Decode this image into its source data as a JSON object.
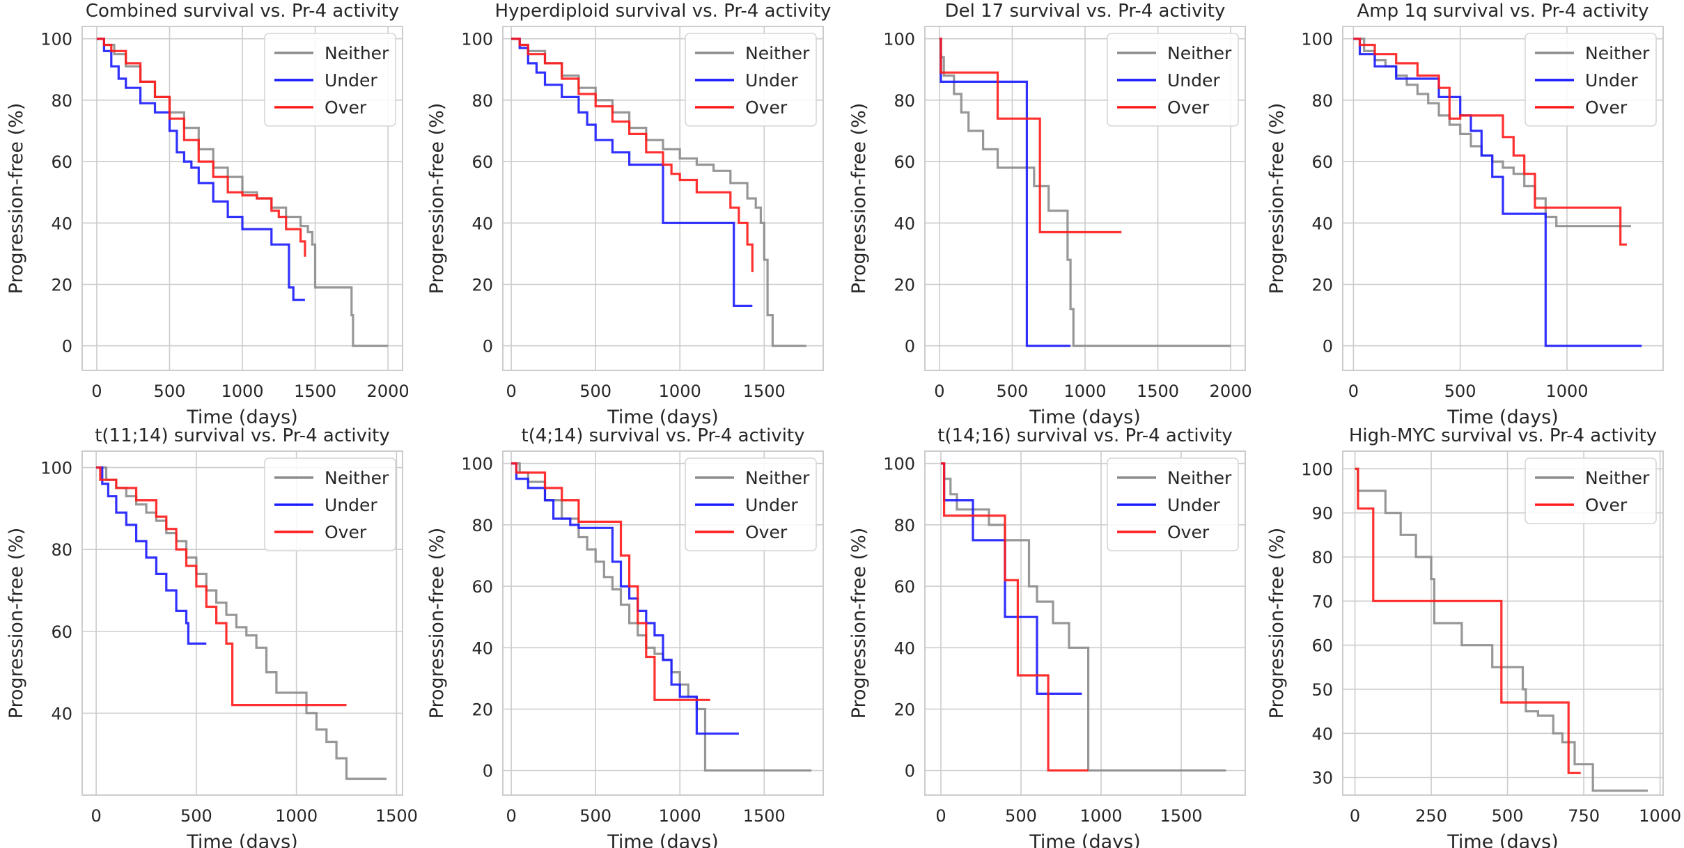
{
  "figure": {
    "ylabel": "Progression-free (%)",
    "xlabel": "Time (days)",
    "colors": {
      "Neither": "#8c8c8c",
      "Under": "#1a1aff",
      "Over": "#ff1a1a"
    }
  },
  "chart_data": [
    {
      "type": "line",
      "title": "Combined survival vs. Pr-4 activity",
      "xlabel": "Time (days)",
      "ylabel": "Progression-free (%)",
      "xlim": [
        -100,
        2100
      ],
      "ylim": [
        -8,
        104
      ],
      "xticks": [
        0,
        500,
        1000,
        1500,
        2000
      ],
      "yticks": [
        0,
        20,
        40,
        60,
        80,
        100
      ],
      "legend": "top-right",
      "series": [
        {
          "name": "Neither",
          "x": [
            0,
            50,
            120,
            200,
            300,
            400,
            500,
            600,
            700,
            800,
            900,
            1000,
            1100,
            1200,
            1300,
            1400,
            1450,
            1480,
            1500,
            1550,
            1600,
            1650,
            1700,
            1750,
            1760,
            2000
          ],
          "y": [
            100,
            98,
            95,
            91,
            86,
            81,
            76,
            71,
            64,
            58,
            55,
            50,
            48,
            45,
            42,
            39,
            37,
            33,
            19,
            19,
            19,
            19,
            19,
            10,
            0,
            0
          ]
        },
        {
          "name": "Under",
          "x": [
            0,
            50,
            100,
            150,
            200,
            300,
            400,
            500,
            550,
            600,
            650,
            700,
            800,
            900,
            1000,
            1100,
            1200,
            1300,
            1320,
            1350,
            1430
          ],
          "y": [
            100,
            96,
            91,
            87,
            84,
            79,
            76,
            70,
            63,
            60,
            58,
            53,
            47,
            42,
            38,
            38,
            33,
            33,
            19,
            15,
            15
          ]
        },
        {
          "name": "Over",
          "x": [
            0,
            50,
            100,
            200,
            300,
            400,
            500,
            600,
            700,
            800,
            900,
            1000,
            1100,
            1200,
            1250,
            1300,
            1350,
            1400,
            1430
          ],
          "y": [
            100,
            98,
            96,
            92,
            86,
            81,
            74,
            67,
            60,
            55,
            50,
            49,
            48,
            44,
            42,
            38,
            38,
            34,
            29
          ]
        }
      ]
    },
    {
      "type": "line",
      "title": "Hyperdiploid survival vs. Pr-4 activity",
      "xlabel": "Time (days)",
      "ylabel": "Progression-free (%)",
      "xlim": [
        -50,
        1850
      ],
      "ylim": [
        -8,
        104
      ],
      "xticks": [
        0,
        500,
        1000,
        1500
      ],
      "yticks": [
        0,
        20,
        40,
        60,
        80,
        100
      ],
      "legend": "top-right",
      "series": [
        {
          "name": "Neither",
          "x": [
            0,
            50,
            100,
            200,
            300,
            400,
            500,
            600,
            700,
            800,
            900,
            1000,
            1100,
            1200,
            1300,
            1400,
            1450,
            1480,
            1500,
            1520,
            1550,
            1750
          ],
          "y": [
            100,
            98,
            96,
            92,
            88,
            84,
            80,
            76,
            71,
            67,
            64,
            61,
            59,
            57,
            53,
            48,
            45,
            40,
            28,
            10,
            0,
            0
          ]
        },
        {
          "name": "Under",
          "x": [
            0,
            50,
            100,
            150,
            200,
            300,
            400,
            450,
            500,
            600,
            700,
            800,
            900,
            1000,
            1200,
            1300,
            1320,
            1350,
            1430
          ],
          "y": [
            100,
            97,
            92,
            89,
            85,
            81,
            76,
            72,
            67,
            63,
            59,
            59,
            40,
            40,
            40,
            40,
            13,
            13,
            13
          ]
        },
        {
          "name": "Over",
          "x": [
            0,
            50,
            100,
            200,
            300,
            400,
            500,
            600,
            700,
            800,
            900,
            950,
            1000,
            1100,
            1200,
            1300,
            1350,
            1400,
            1430
          ],
          "y": [
            100,
            98,
            95,
            92,
            87,
            82,
            78,
            73,
            69,
            63,
            59,
            56,
            54,
            50,
            50,
            45,
            40,
            33,
            24
          ]
        }
      ]
    },
    {
      "type": "line",
      "title": "Del 17 survival vs. Pr-4 activity",
      "xlabel": "Time (days)",
      "ylabel": "Progression-free (%)",
      "xlim": [
        -100,
        2100
      ],
      "ylim": [
        -8,
        104
      ],
      "xticks": [
        0,
        500,
        1000,
        1500,
        2000
      ],
      "yticks": [
        0,
        20,
        40,
        60,
        80,
        100
      ],
      "legend": "top-right",
      "series": [
        {
          "name": "Neither",
          "x": [
            0,
            10,
            30,
            100,
            150,
            200,
            300,
            400,
            500,
            550,
            600,
            650,
            700,
            750,
            800,
            850,
            880,
            900,
            920,
            1500,
            2000
          ],
          "y": [
            100,
            94,
            88,
            82,
            76,
            70,
            64,
            58,
            58,
            58,
            58,
            52,
            52,
            44,
            44,
            44,
            28,
            12,
            0,
            0,
            0
          ]
        },
        {
          "name": "Under",
          "x": [
            0,
            10,
            580,
            600,
            900
          ],
          "y": [
            100,
            86,
            86,
            0,
            0
          ]
        },
        {
          "name": "Over",
          "x": [
            0,
            10,
            380,
            400,
            660,
            690,
            1250
          ],
          "y": [
            100,
            89,
            89,
            74,
            74,
            37,
            37
          ]
        }
      ]
    },
    {
      "type": "line",
      "title": "Amp 1q survival vs. Pr-4 activity",
      "xlabel": "Time (days)",
      "ylabel": "Progression-free (%)",
      "xlim": [
        -50,
        1450
      ],
      "ylim": [
        -8,
        104
      ],
      "xticks": [
        0,
        500,
        1000
      ],
      "yticks": [
        0,
        20,
        40,
        60,
        80,
        100
      ],
      "legend": "top-right",
      "series": [
        {
          "name": "Neither",
          "x": [
            0,
            50,
            100,
            150,
            200,
            250,
            300,
            350,
            400,
            450,
            500,
            550,
            600,
            650,
            700,
            750,
            800,
            850,
            900,
            950,
            1000,
            1100,
            1200,
            1300
          ],
          "y": [
            100,
            96,
            93,
            91,
            88,
            85,
            82,
            79,
            75,
            72,
            69,
            65,
            62,
            60,
            58,
            56,
            52,
            48,
            42,
            39,
            39,
            39,
            39,
            39
          ]
        },
        {
          "name": "Under",
          "x": [
            0,
            30,
            100,
            200,
            300,
            400,
            500,
            550,
            600,
            650,
            700,
            880,
            900,
            1350
          ],
          "y": [
            100,
            95,
            91,
            87,
            87,
            81,
            75,
            70,
            62,
            55,
            43,
            43,
            0,
            0
          ]
        },
        {
          "name": "Over",
          "x": [
            0,
            30,
            100,
            200,
            300,
            400,
            450,
            500,
            600,
            700,
            750,
            800,
            850,
            900,
            1200,
            1250,
            1280
          ],
          "y": [
            100,
            98,
            95,
            92,
            88,
            84,
            74,
            75,
            75,
            68,
            62,
            56,
            45,
            45,
            45,
            33,
            33
          ]
        }
      ]
    },
    {
      "type": "line",
      "title": "t(11;14) survival vs. Pr-4 activity",
      "xlabel": "Time (days)",
      "ylabel": "Progression-free (%)",
      "xlim": [
        -70,
        1530
      ],
      "ylim": [
        20,
        104
      ],
      "xticks": [
        0,
        500,
        1000,
        1500
      ],
      "yticks": [
        40,
        60,
        80,
        100
      ],
      "legend": "top-right",
      "series": [
        {
          "name": "Neither",
          "x": [
            0,
            50,
            100,
            150,
            200,
            250,
            300,
            350,
            400,
            450,
            500,
            550,
            600,
            650,
            700,
            750,
            800,
            850,
            900,
            1000,
            1050,
            1100,
            1150,
            1200,
            1250,
            1300,
            1450
          ],
          "y": [
            100,
            97,
            95,
            93,
            91,
            89,
            87,
            84,
            82,
            78,
            74,
            70,
            67,
            64,
            61,
            59,
            56,
            50,
            45,
            45,
            40,
            36,
            33,
            29,
            24,
            24,
            24
          ]
        },
        {
          "name": "Under",
          "x": [
            0,
            30,
            60,
            100,
            150,
            200,
            250,
            300,
            350,
            400,
            450,
            460,
            550
          ],
          "y": [
            100,
            96,
            93,
            89,
            86,
            82,
            78,
            74,
            70,
            65,
            62,
            57,
            57
          ]
        },
        {
          "name": "Over",
          "x": [
            0,
            20,
            100,
            200,
            300,
            350,
            400,
            450,
            500,
            550,
            600,
            650,
            680,
            1250
          ],
          "y": [
            100,
            97,
            95,
            92,
            88,
            85,
            80,
            76,
            71,
            66,
            62,
            57,
            42,
            42
          ]
        }
      ]
    },
    {
      "type": "line",
      "title": "t(4;14) survival vs. Pr-4 activity",
      "xlabel": "Time (days)",
      "ylabel": "Progression-free (%)",
      "xlim": [
        -50,
        1850
      ],
      "ylim": [
        -8,
        104
      ],
      "xticks": [
        0,
        500,
        1000,
        1500
      ],
      "yticks": [
        0,
        20,
        40,
        60,
        80,
        100
      ],
      "legend": "top-right",
      "series": [
        {
          "name": "Neither",
          "x": [
            0,
            50,
            100,
            200,
            300,
            400,
            450,
            500,
            550,
            600,
            650,
            700,
            750,
            800,
            850,
            900,
            950,
            1000,
            1050,
            1100,
            1150,
            1780
          ],
          "y": [
            100,
            97,
            94,
            88,
            82,
            76,
            72,
            68,
            63,
            59,
            54,
            48,
            44,
            40,
            38,
            36,
            32,
            28,
            24,
            20,
            0,
            0
          ]
        },
        {
          "name": "Under",
          "x": [
            0,
            30,
            100,
            200,
            250,
            350,
            400,
            500,
            550,
            600,
            650,
            700,
            750,
            800,
            850,
            900,
            950,
            1000,
            1100,
            1350
          ],
          "y": [
            100,
            95,
            92,
            88,
            82,
            80,
            79,
            79,
            79,
            68,
            60,
            56,
            52,
            48,
            44,
            36,
            28,
            24,
            12,
            12
          ]
        },
        {
          "name": "Over",
          "x": [
            0,
            30,
            200,
            300,
            400,
            600,
            650,
            700,
            750,
            800,
            850,
            1180
          ],
          "y": [
            100,
            97,
            92,
            88,
            81,
            81,
            70,
            60,
            48,
            37,
            23,
            23
          ]
        }
      ]
    },
    {
      "type": "line",
      "title": "t(14;16) survival vs. Pr-4 activity",
      "xlabel": "Time (days)",
      "ylabel": "Progression-free (%)",
      "xlim": [
        -100,
        1900
      ],
      "ylim": [
        -8,
        104
      ],
      "xticks": [
        0,
        500,
        1000,
        1500
      ],
      "yticks": [
        0,
        20,
        40,
        60,
        80,
        100
      ],
      "legend": "top-right",
      "series": [
        {
          "name": "Neither",
          "x": [
            0,
            20,
            60,
            100,
            200,
            300,
            400,
            500,
            550,
            600,
            700,
            800,
            850,
            900,
            920,
            1780
          ],
          "y": [
            100,
            95,
            90,
            85,
            85,
            80,
            75,
            75,
            60,
            55,
            48,
            40,
            40,
            40,
            0,
            0
          ]
        },
        {
          "name": "Under",
          "x": [
            0,
            20,
            200,
            300,
            400,
            600,
            620,
            880
          ],
          "y": [
            100,
            88,
            75,
            75,
            50,
            25,
            25,
            25
          ]
        },
        {
          "name": "Over",
          "x": [
            0,
            20,
            300,
            400,
            480,
            660,
            670,
            920
          ],
          "y": [
            100,
            83,
            83,
            62,
            31,
            31,
            0,
            0
          ]
        }
      ]
    },
    {
      "type": "line",
      "title": "High-MYC survival vs. Pr-4 activity",
      "xlabel": "Time (days)",
      "ylabel": "Progression-free (%)",
      "xlim": [
        -40,
        1010
      ],
      "ylim": [
        26,
        104
      ],
      "xticks": [
        0,
        250,
        500,
        750,
        1000
      ],
      "yticks": [
        30,
        40,
        50,
        60,
        70,
        80,
        90,
        100
      ],
      "legend": "top-right",
      "series": [
        {
          "name": "Neither",
          "x": [
            0,
            10,
            100,
            150,
            200,
            250,
            260,
            350,
            450,
            550,
            560,
            600,
            650,
            680,
            720,
            780,
            960
          ],
          "y": [
            100,
            95,
            90,
            85,
            80,
            75,
            65,
            60,
            55,
            50,
            45,
            44,
            40,
            38,
            33,
            27,
            27
          ]
        },
        {
          "name": "Over",
          "x": [
            0,
            10,
            60,
            480,
            650,
            700,
            740
          ],
          "y": [
            100,
            91,
            70,
            47,
            47,
            31,
            31
          ]
        }
      ]
    }
  ]
}
